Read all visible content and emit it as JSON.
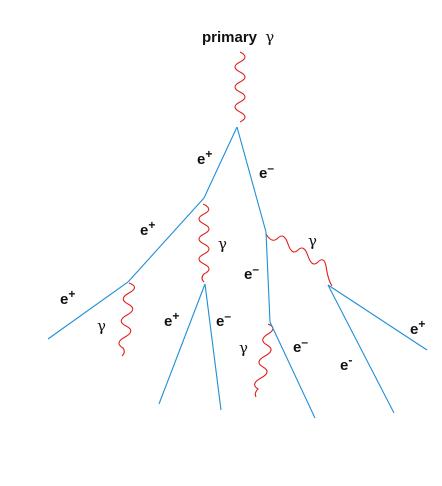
{
  "title": {
    "text": "primary",
    "symbol": "γ"
  },
  "labels": {
    "e_plus_1": {
      "base": "e",
      "sup": "+"
    },
    "e_minus_1": {
      "base": "e",
      "sup": "–"
    },
    "e_plus_2": {
      "base": "e",
      "sup": "+"
    },
    "gamma_1": "γ",
    "gamma_2": "γ",
    "e_minus_2": {
      "base": "e",
      "sup": "–"
    },
    "e_plus_3": {
      "base": "e",
      "sup": "+"
    },
    "gamma_3": "γ",
    "e_plus_4": {
      "base": "e",
      "sup": "+"
    },
    "e_minus_3": {
      "base": "e",
      "sup": "–"
    },
    "gamma_4": "γ",
    "e_minus_4": {
      "base": "e",
      "sup": "–"
    },
    "e_minus_5": {
      "base": "e",
      "sup": "-"
    },
    "e_plus_5": {
      "base": "e",
      "sup": "+"
    }
  },
  "colors": {
    "electron_track": "#1f8fd6",
    "photon_track": "#e0201b",
    "text": "#111111"
  }
}
